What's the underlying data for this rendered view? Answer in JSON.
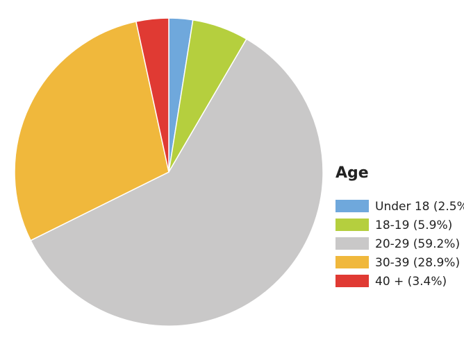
{
  "chart_data": {
    "type": "pie",
    "legend_title": "Age",
    "categories": [
      "Under 18 (2.5%",
      "18-19 (5.9%)",
      "20-29 (59.2%)",
      "30-39 (28.9%)",
      "40 + (3.4%)"
    ],
    "values": [
      2.5,
      5.9,
      59.2,
      28.9,
      3.4
    ],
    "colors": [
      "#6fa8dc",
      "#b5cf3e",
      "#c9c8c8",
      "#f0b83c",
      "#e03a33"
    ],
    "legend": "right"
  }
}
